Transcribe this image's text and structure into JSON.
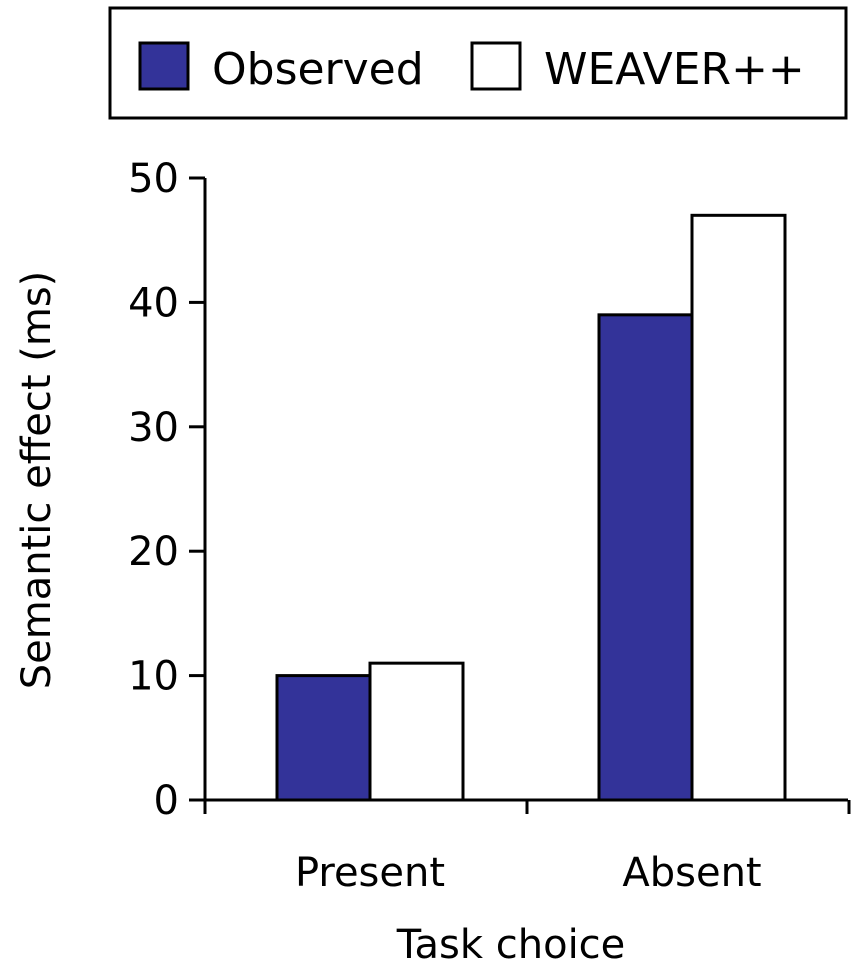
{
  "chart_data": {
    "type": "bar",
    "title": "",
    "xlabel": "Task choice",
    "ylabel": "Semantic effect (ms)",
    "categories": [
      "Present",
      "Absent"
    ],
    "ylim": [
      0,
      50
    ],
    "yticks": [
      "0",
      "10",
      "20",
      "30",
      "40",
      "50"
    ],
    "grid": false,
    "legend_position": "top",
    "series": [
      {
        "name": "Observed",
        "values": [
          10,
          39
        ],
        "color": "#333399"
      },
      {
        "name": "WEAVER++",
        "values": [
          11,
          47
        ],
        "color": "#ffffff"
      }
    ]
  }
}
